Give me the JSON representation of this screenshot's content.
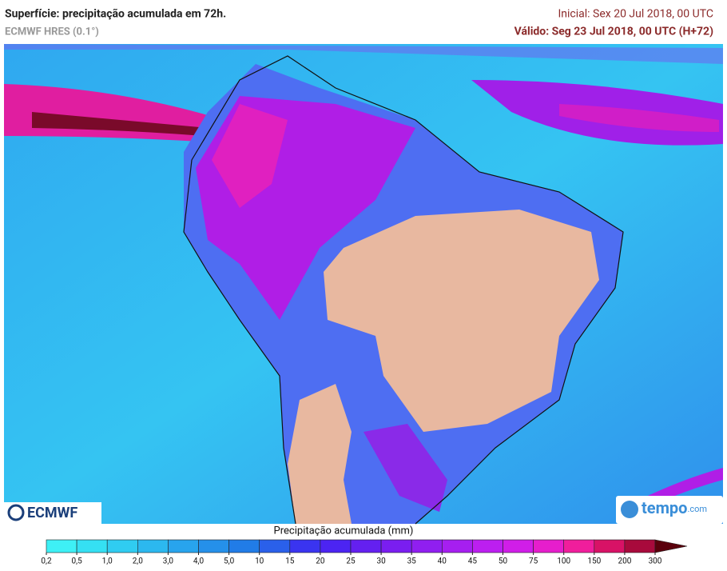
{
  "header": {
    "title": "Superfície: precipitação acumulada em 72h.",
    "model": "ECMWF HRES (0.1°)",
    "initial": "Inicial: Sex 20 Jul 2018, 00 UTC",
    "valid": "Válido: Seg 23 Jul 2018, 00 UTC (H+72)"
  },
  "logos": {
    "left": "ECMWF",
    "right_main": "tempo",
    "right_suffix": ".com"
  },
  "colorbar": {
    "title": "Precipitação acumulada (mm)",
    "ticks": [
      {
        "value": 0.2,
        "label": "0,2"
      },
      {
        "value": 0.5,
        "label": "0,5"
      },
      {
        "value": 1,
        "label": "1,0"
      },
      {
        "value": 2,
        "label": "2,0"
      },
      {
        "value": 3,
        "label": "3,0"
      },
      {
        "value": 4,
        "label": "4,0"
      },
      {
        "value": 5,
        "label": "5,0"
      },
      10,
      15,
      20,
      25,
      30,
      35,
      40,
      45,
      50,
      75,
      100,
      150,
      200,
      300
    ],
    "colors": [
      "#3ef0f5",
      "#35e0f3",
      "#30ccf1",
      "#2cb8ef",
      "#28a4ed",
      "#2590ea",
      "#217ce7",
      "#2a60ea",
      "#3a34f0",
      "#4c24f2",
      "#6420f0",
      "#7a1ef0",
      "#901ff0",
      "#a61ff0",
      "#bc1ff0",
      "#d01ee8",
      "#e61ecc",
      "#f01e9c",
      "#d81266",
      "#a80a3c",
      "#5a000c"
    ]
  }
}
